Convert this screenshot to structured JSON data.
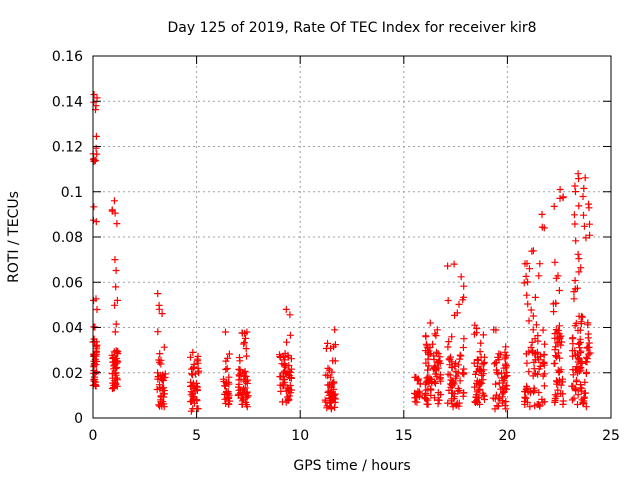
{
  "chart_data": {
    "type": "scatter",
    "title": "Day 125 of 2019, Rate Of TEC Index for receiver kir8",
    "xlabel": "GPS time / hours",
    "ylabel": "ROTI / TECUs",
    "xlim": [
      0,
      25
    ],
    "ylim": [
      0,
      0.16
    ],
    "grid": true,
    "xticks": [
      0,
      5,
      10,
      15,
      20,
      25
    ],
    "xtick_labels": [
      "0",
      "5",
      "10",
      "15",
      "20",
      "25"
    ],
    "yticks": [
      0,
      0.02,
      0.04,
      0.06,
      0.08,
      0.1,
      0.12,
      0.14,
      0.16
    ],
    "ytick_labels": [
      "0",
      "0.02",
      "0.04",
      "0.06",
      "0.08",
      "0.1",
      "0.12",
      "0.14",
      "0.16"
    ],
    "marker": "plus",
    "color": "#ff0000",
    "clusters": [
      {
        "x_start": 0.0,
        "x_end": 0.2,
        "y_min": 0.014,
        "y_max": 0.143,
        "dense_max": 0.035,
        "n": 60
      },
      {
        "x_start": 0.9,
        "x_end": 1.2,
        "y_min": 0.013,
        "y_max": 0.096,
        "dense_max": 0.03,
        "n": 55
      },
      {
        "x_start": 3.1,
        "x_end": 3.5,
        "y_min": 0.005,
        "y_max": 0.055,
        "dense_max": 0.02,
        "n": 45
      },
      {
        "x_start": 4.7,
        "x_end": 5.1,
        "y_min": 0.003,
        "y_max": 0.029,
        "dense_max": 0.02,
        "n": 45
      },
      {
        "x_start": 6.3,
        "x_end": 6.6,
        "y_min": 0.006,
        "y_max": 0.038,
        "dense_max": 0.018,
        "n": 30
      },
      {
        "x_start": 7.0,
        "x_end": 7.5,
        "y_min": 0.005,
        "y_max": 0.038,
        "dense_max": 0.022,
        "n": 55
      },
      {
        "x_start": 9.0,
        "x_end": 9.6,
        "y_min": 0.007,
        "y_max": 0.048,
        "dense_max": 0.028,
        "n": 60
      },
      {
        "x_start": 11.2,
        "x_end": 11.7,
        "y_min": 0.004,
        "y_max": 0.039,
        "dense_max": 0.022,
        "n": 55
      },
      {
        "x_start": 15.5,
        "x_end": 15.8,
        "y_min": 0.007,
        "y_max": 0.018,
        "dense_max": 0.016,
        "n": 20
      },
      {
        "x_start": 16.0,
        "x_end": 16.8,
        "y_min": 0.006,
        "y_max": 0.042,
        "dense_max": 0.03,
        "n": 75
      },
      {
        "x_start": 17.1,
        "x_end": 17.9,
        "y_min": 0.005,
        "y_max": 0.068,
        "dense_max": 0.028,
        "n": 70
      },
      {
        "x_start": 18.4,
        "x_end": 18.9,
        "y_min": 0.006,
        "y_max": 0.041,
        "dense_max": 0.028,
        "n": 50
      },
      {
        "x_start": 19.3,
        "x_end": 20.0,
        "y_min": 0.004,
        "y_max": 0.039,
        "dense_max": 0.028,
        "n": 55
      },
      {
        "x_start": 20.8,
        "x_end": 21.8,
        "y_min": 0.005,
        "y_max": 0.09,
        "dense_max": 0.035,
        "n": 85
      },
      {
        "x_start": 22.2,
        "x_end": 22.7,
        "y_min": 0.006,
        "y_max": 0.101,
        "dense_max": 0.04,
        "n": 60
      },
      {
        "x_start": 23.1,
        "x_end": 24.0,
        "y_min": 0.005,
        "y_max": 0.108,
        "dense_max": 0.045,
        "n": 110
      }
    ]
  }
}
